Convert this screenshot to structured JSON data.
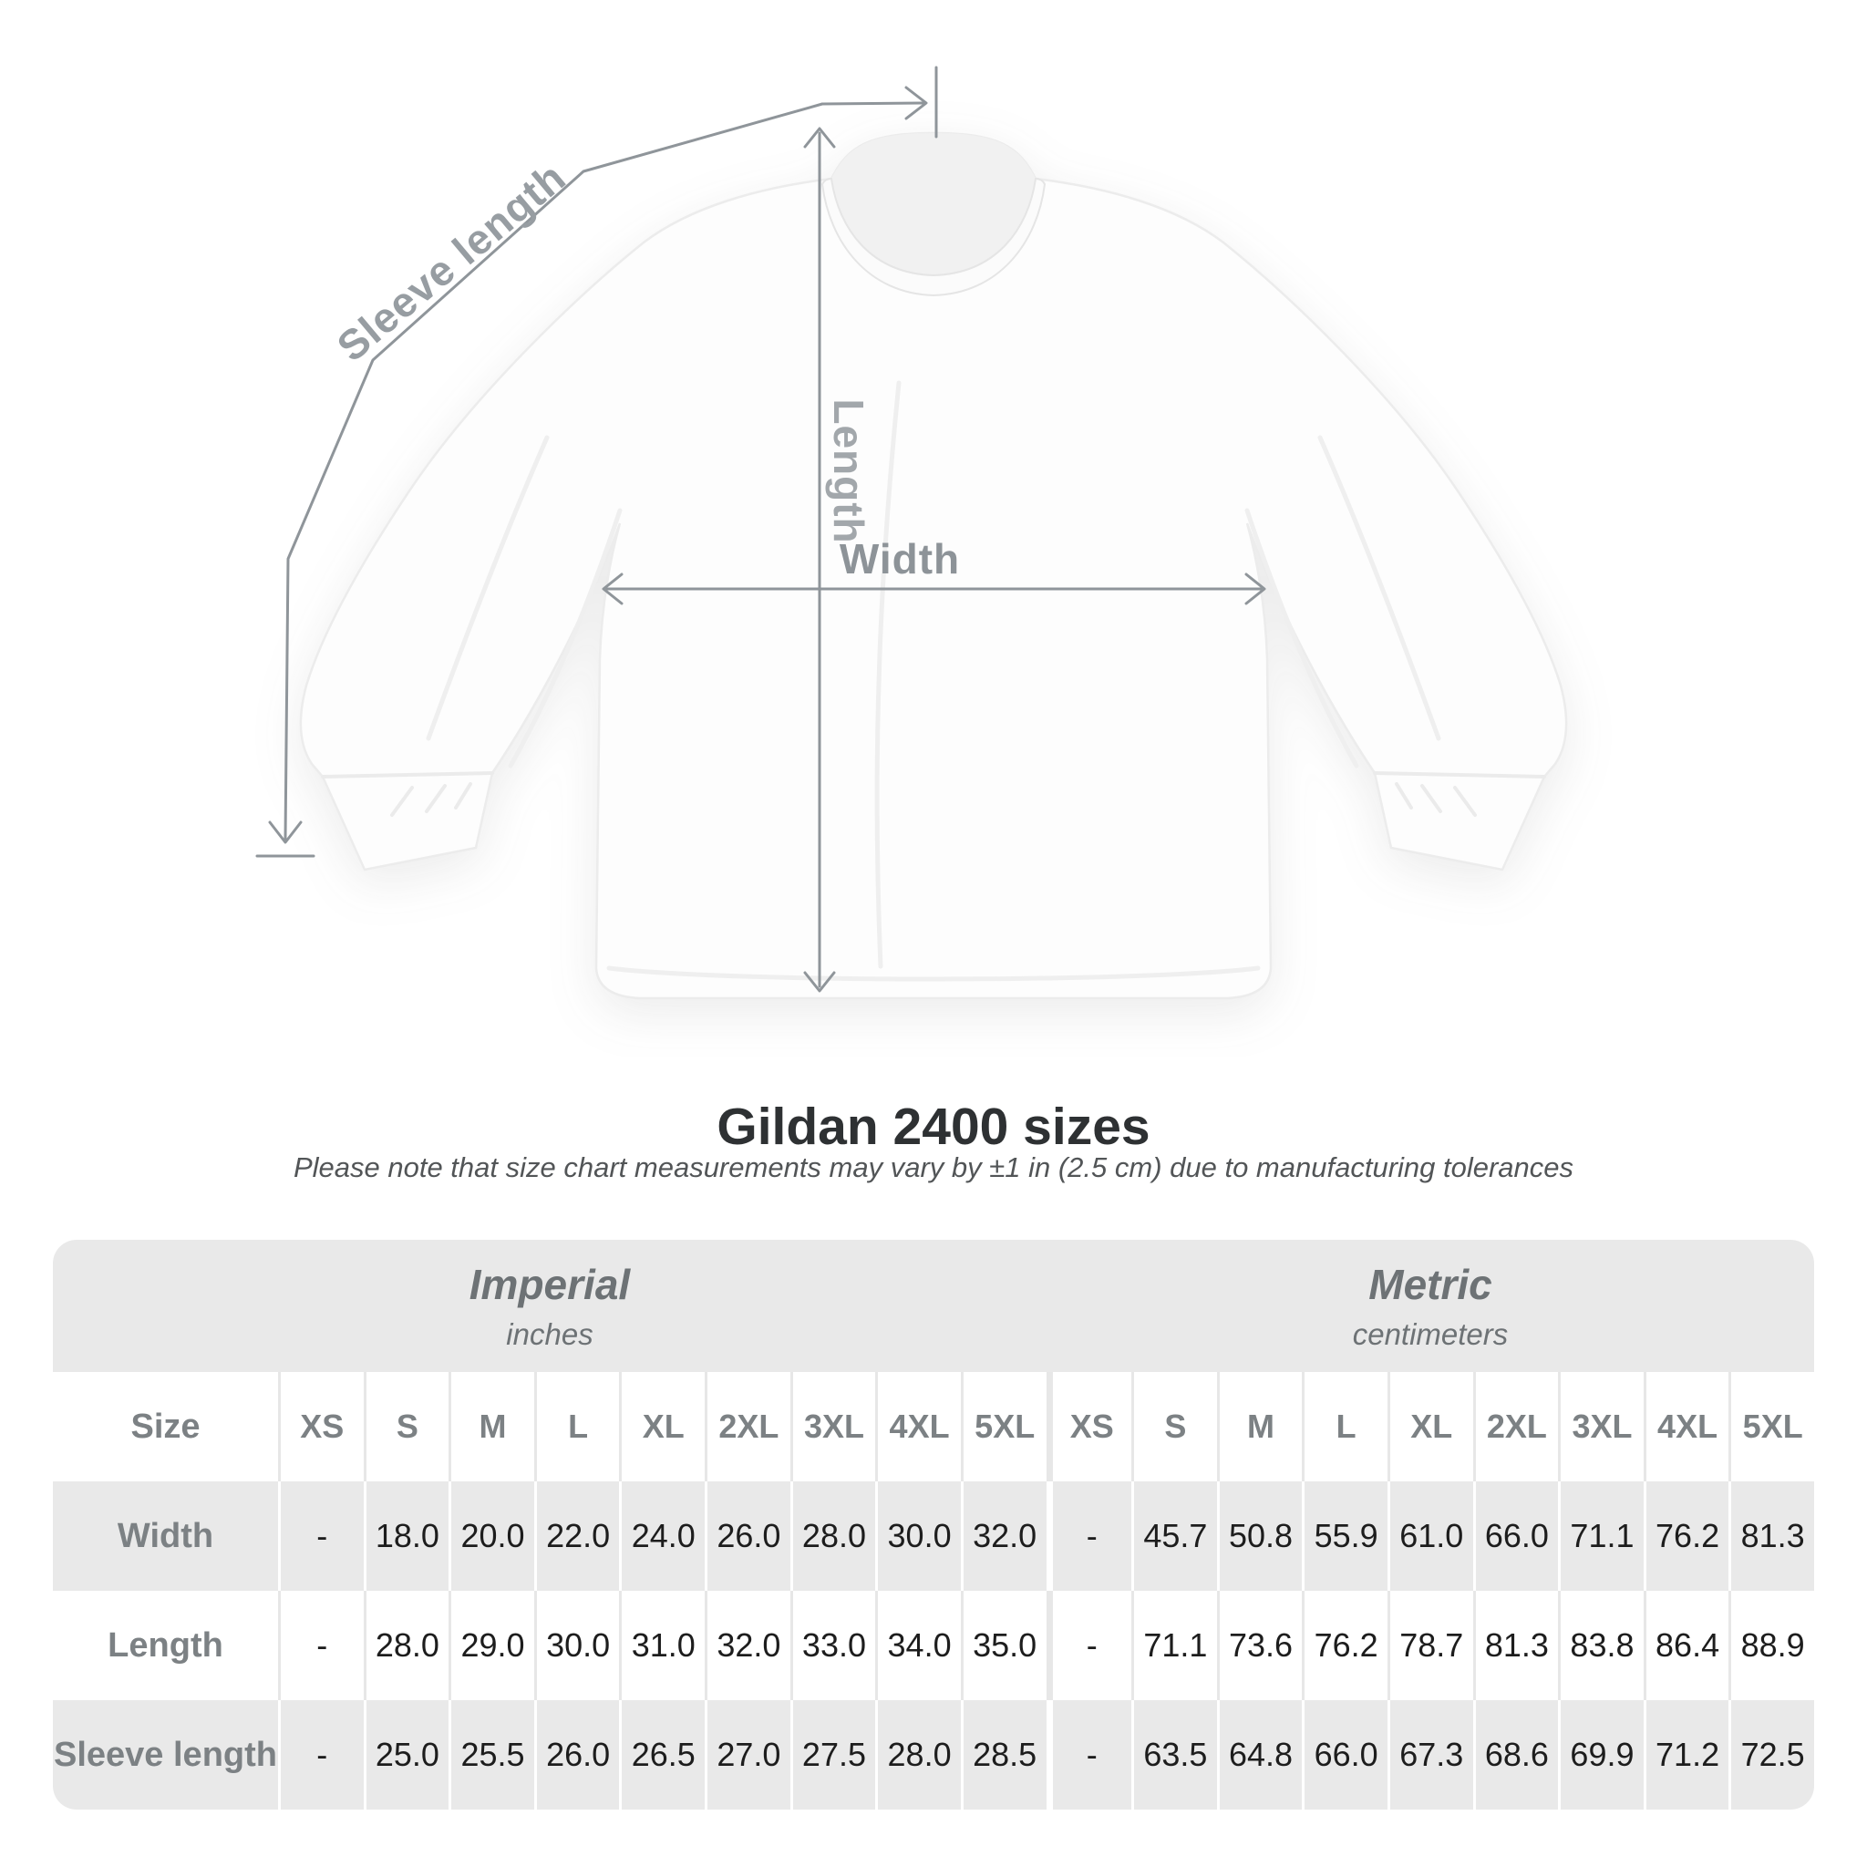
{
  "diagram": {
    "sleeve_label": "Sleeve length",
    "length_label": "Length",
    "width_label": "Width"
  },
  "heading": {
    "title": "Gildan 2400 sizes",
    "subtitle": "Please note that size chart measurements may vary by ±1 in (2.5 cm) due to manufacturing tolerances"
  },
  "table": {
    "unit_groups": [
      {
        "label": "Imperial",
        "sublabel": "inches"
      },
      {
        "label": "Metric",
        "sublabel": "centimeters"
      }
    ],
    "size_header": "Size",
    "sizes": [
      "XS",
      "S",
      "M",
      "L",
      "XL",
      "2XL",
      "3XL",
      "4XL",
      "5XL"
    ],
    "rows": [
      {
        "label": "Width",
        "imperial": [
          "-",
          "18.0",
          "20.0",
          "22.0",
          "24.0",
          "26.0",
          "28.0",
          "30.0",
          "32.0"
        ],
        "metric": [
          "-",
          "45.7",
          "50.8",
          "55.9",
          "61.0",
          "66.0",
          "71.1",
          "76.2",
          "81.3"
        ]
      },
      {
        "label": "Length",
        "imperial": [
          "-",
          "28.0",
          "29.0",
          "30.0",
          "31.0",
          "32.0",
          "33.0",
          "34.0",
          "35.0"
        ],
        "metric": [
          "-",
          "71.1",
          "73.6",
          "76.2",
          "78.7",
          "81.3",
          "83.8",
          "86.4",
          "88.9"
        ]
      },
      {
        "label": "Sleeve length",
        "imperial": [
          "-",
          "25.0",
          "25.5",
          "26.0",
          "26.5",
          "27.0",
          "27.5",
          "28.0",
          "28.5"
        ],
        "metric": [
          "-",
          "63.5",
          "64.8",
          "66.0",
          "67.3",
          "68.6",
          "69.9",
          "71.2",
          "72.5"
        ]
      }
    ]
  },
  "colors": {
    "table_band_gray": "#e9e9e9",
    "row_stripe_gray": "#e9e9e9",
    "white_row_separator": "#e7e7e7",
    "gray_row_separator": "#ffffff",
    "value_text": "#1d1d1d",
    "muted_label_text": "#7c8184",
    "arrow_gray": "#8f959a",
    "diagram_label_gray": "#979da2",
    "title_text": "#2e3133"
  }
}
